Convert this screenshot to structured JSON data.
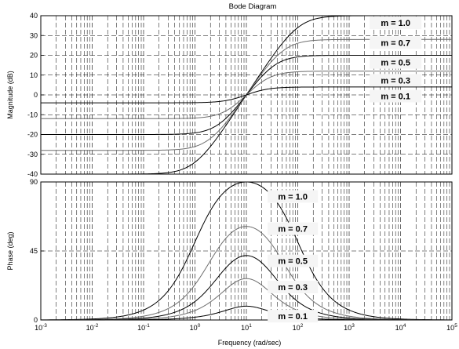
{
  "chart_data": {
    "type": "line",
    "title": "Bode Diagram",
    "xlabel": "Frequency  (rad/sec)",
    "xscale": "log",
    "xlim": [
      0.001,
      100000
    ],
    "grid": true,
    "x_ticks": [
      {
        "base": "10",
        "exp": "-3"
      },
      {
        "base": "10",
        "exp": "-2"
      },
      {
        "base": "10",
        "exp": "-1"
      },
      {
        "base": "10",
        "exp": "0"
      },
      {
        "base": "10",
        "exp": "1"
      },
      {
        "base": "10",
        "exp": "2"
      },
      {
        "base": "10",
        "exp": "3"
      },
      {
        "base": "10",
        "exp": "4"
      },
      {
        "base": "10",
        "exp": "5"
      }
    ],
    "magnitude": {
      "ylabel": "Magnitude (dB)",
      "ylim": [
        -40,
        40
      ],
      "y_ticks": [
        "-40",
        "-30",
        "-20",
        "-10",
        "0",
        "10",
        "20",
        "30",
        "40"
      ],
      "series": [
        {
          "label": "m = 1.0",
          "m": 1.0,
          "low_db": -40,
          "high_db": 40,
          "color": "#000000"
        },
        {
          "label": "m = 0.7",
          "m": 0.7,
          "low_db": -28,
          "high_db": 28,
          "color": "#6e6e6e"
        },
        {
          "label": "m = 0.5",
          "m": 0.5,
          "low_db": -20,
          "high_db": 20,
          "color": "#000000"
        },
        {
          "label": "m = 0.3",
          "m": 0.3,
          "low_db": -12,
          "high_db": 12,
          "color": "#6e6e6e"
        },
        {
          "label": "m = 0.1",
          "m": 0.1,
          "low_db": -4,
          "high_db": 4,
          "color": "#000000"
        }
      ]
    },
    "phase": {
      "ylabel": "Phase (deg)",
      "ylim": [
        0,
        90
      ],
      "y_ticks": [
        "0",
        "45",
        "90"
      ],
      "series": [
        {
          "label": "m = 1.0",
          "m": 1.0,
          "peak_deg": 90,
          "color": "#000000"
        },
        {
          "label": "m = 0.7",
          "m": 0.7,
          "peak_deg": 61,
          "color": "#6e6e6e"
        },
        {
          "label": "m = 0.5",
          "m": 0.5,
          "peak_deg": 42,
          "color": "#000000"
        },
        {
          "label": "m = 0.3",
          "m": 0.3,
          "peak_deg": 27,
          "color": "#6e6e6e"
        },
        {
          "label": "m = 0.1",
          "m": 0.1,
          "peak_deg": 9,
          "color": "#000000"
        }
      ]
    }
  }
}
